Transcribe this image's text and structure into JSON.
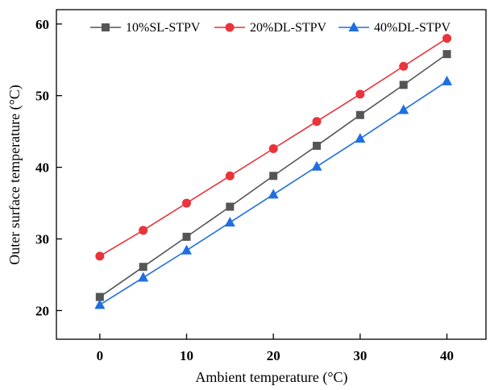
{
  "chart_data": {
    "type": "line",
    "xlabel": "Ambient temperature (°C)",
    "ylabel": "Outer surface temperature (°C)",
    "xlim": [
      -5,
      44.5
    ],
    "ylim": [
      16,
      62
    ],
    "xticks": [
      0,
      10,
      20,
      30,
      40
    ],
    "yticks": [
      20,
      30,
      40,
      50,
      60
    ],
    "x": [
      0,
      5,
      10,
      15,
      20,
      25,
      30,
      35,
      40
    ],
    "grid": false,
    "legend_position": "top",
    "series": [
      {
        "name": "10%SL-STPV",
        "color": "#555555",
        "marker": "square",
        "values": [
          21.9,
          26.1,
          30.3,
          34.5,
          38.8,
          43.0,
          47.3,
          51.5,
          55.8
        ]
      },
      {
        "name": "20%DL-STPV",
        "color": "#e8343a",
        "marker": "circle",
        "values": [
          27.6,
          31.2,
          35.0,
          38.8,
          42.6,
          46.4,
          50.2,
          54.1,
          58.0
        ]
      },
      {
        "name": "40%DL-STPV",
        "color": "#1f6fe0",
        "marker": "triangle",
        "values": [
          20.8,
          24.6,
          28.4,
          32.3,
          36.2,
          40.1,
          44.0,
          48.0,
          52.0
        ]
      }
    ]
  }
}
